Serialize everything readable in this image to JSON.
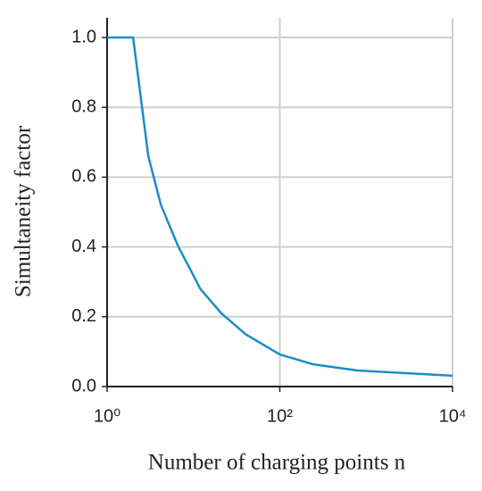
{
  "chart_data": {
    "type": "line",
    "x_label": "Number of charging points n",
    "y_label": "Simultaneity factor",
    "x": [
      1,
      2,
      3,
      4.2,
      5.3,
      6.7,
      9,
      12,
      21,
      40,
      100,
      240,
      790,
      10000
    ],
    "values": [
      1,
      1,
      0.66,
      0.52,
      0.46,
      0.4,
      0.34,
      0.28,
      0.21,
      0.15,
      0.092,
      0.064,
      0.046,
      0.031
    ],
    "color": "#1b8dc8",
    "x_scale": "log",
    "xlim": [
      1,
      10000
    ],
    "xticks": [
      {
        "value": 1,
        "label": "10⁰"
      },
      {
        "value": 100,
        "label": "10²"
      },
      {
        "value": 10000,
        "label": "10⁴"
      }
    ],
    "ylim": [
      0,
      1
    ],
    "yticks": [
      {
        "value": 0,
        "label": "0.0"
      },
      0.2,
      0.4,
      0.6,
      0.8,
      {
        "value": 1,
        "label": "1.0"
      }
    ],
    "grid": true
  }
}
